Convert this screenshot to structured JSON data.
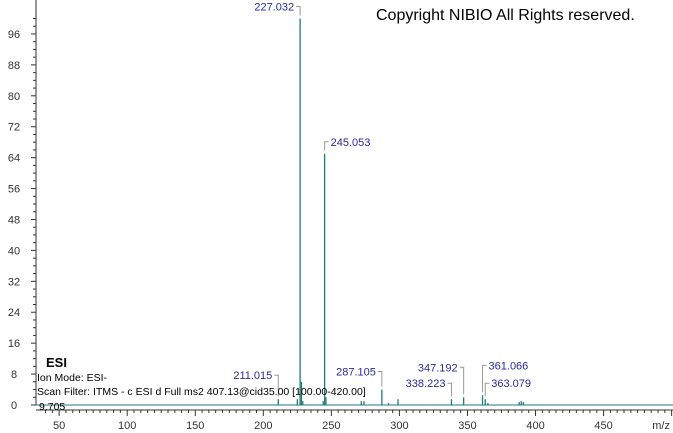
{
  "copyright": "Copyright NIBIO All Rights reserved.",
  "info": {
    "ionization": "ESI",
    "ion_mode": "Ion Mode: ESI-",
    "scan_filter": "Scan Filter: ITMS - c ESI d Full ms2 407.13@cid35.00 [100.00-420.00]",
    "retention": "9.705"
  },
  "chart_data": {
    "type": "bar",
    "title": "",
    "xlabel": "m/z",
    "ylabel": "",
    "xlim": [
      33,
      501
    ],
    "ylim": [
      0,
      100
    ],
    "xticks": [
      50,
      100,
      150,
      200,
      250,
      300,
      350,
      400,
      450
    ],
    "yticks": [
      0,
      8,
      16,
      24,
      32,
      40,
      48,
      56,
      64,
      72,
      80,
      88,
      96
    ],
    "grid": false,
    "line_color": "#1f7a78",
    "label_color": "#2a2a9a",
    "peaks": [
      {
        "mz": 211.015,
        "intensity": 1.5,
        "label": "211.015"
      },
      {
        "mz": 225.0,
        "intensity": 1.5
      },
      {
        "mz": 227.032,
        "intensity": 100,
        "label": "227.032"
      },
      {
        "mz": 228.0,
        "intensity": 6
      },
      {
        "mz": 229.0,
        "intensity": 1
      },
      {
        "mz": 244.0,
        "intensity": 1
      },
      {
        "mz": 245.053,
        "intensity": 65,
        "label": "245.053"
      },
      {
        "mz": 246.0,
        "intensity": 2
      },
      {
        "mz": 272.0,
        "intensity": 1
      },
      {
        "mz": 274.0,
        "intensity": 1
      },
      {
        "mz": 287.105,
        "intensity": 4,
        "label": "287.105"
      },
      {
        "mz": 292.0,
        "intensity": 0.5
      },
      {
        "mz": 299.0,
        "intensity": 1.5
      },
      {
        "mz": 338.223,
        "intensity": 1.5,
        "label": "338.223"
      },
      {
        "mz": 347.192,
        "intensity": 2,
        "label": "347.192"
      },
      {
        "mz": 361.066,
        "intensity": 2.5,
        "label": "361.066"
      },
      {
        "mz": 363.079,
        "intensity": 1.5,
        "label": "363.079"
      },
      {
        "mz": 365.0,
        "intensity": 0.5
      },
      {
        "mz": 388.0,
        "intensity": 0.8
      },
      {
        "mz": 389.5,
        "intensity": 1
      },
      {
        "mz": 391.0,
        "intensity": 0.8
      }
    ]
  }
}
